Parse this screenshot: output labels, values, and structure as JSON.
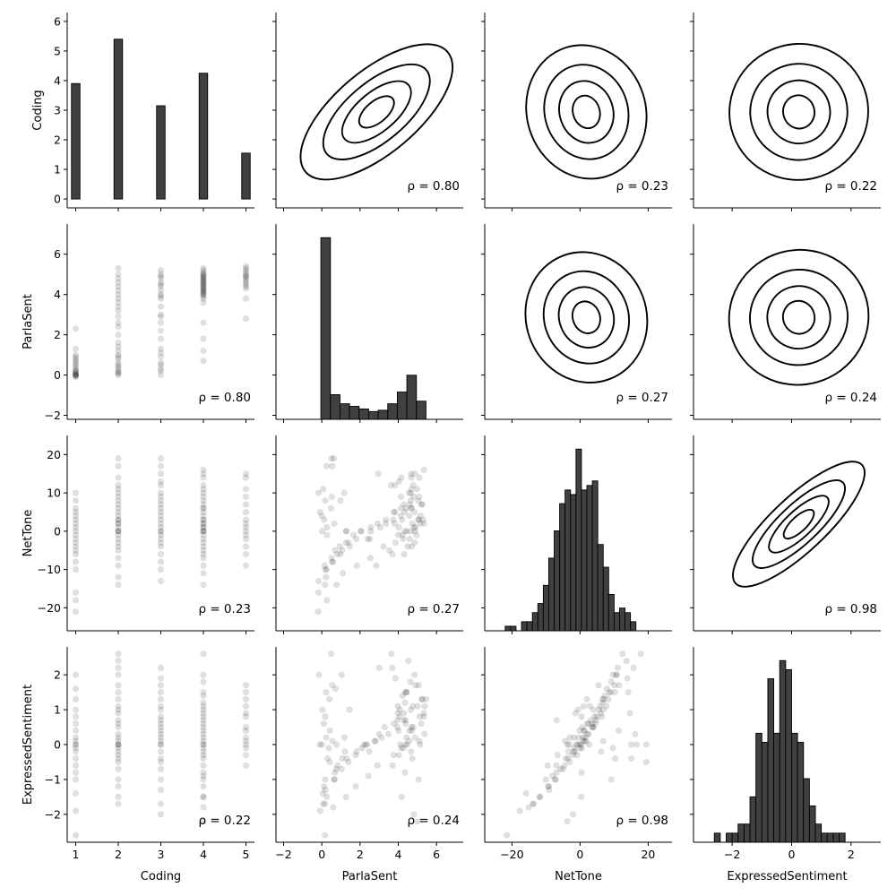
{
  "chart_data": {
    "type": "pairplot",
    "variables": [
      "Coding",
      "ParlaSent",
      "NetTone",
      "ExpressedSentiment"
    ],
    "x_ranges": [
      [
        0.8,
        5.2
      ],
      [
        -2.4,
        7.4
      ],
      [
        -28,
        27
      ],
      [
        -3.3,
        3.0
      ]
    ],
    "y_ranges": [
      [
        -0.3,
        6.3
      ],
      [
        -2.2,
        7.5
      ],
      [
        -26,
        25
      ],
      [
        -2.8,
        2.8
      ]
    ],
    "x_ticks": [
      [
        1,
        2,
        3,
        4,
        5
      ],
      [
        -2,
        0,
        2,
        4,
        6
      ],
      [
        -20,
        0,
        20
      ],
      [
        -2,
        0,
        2
      ]
    ],
    "y_ticks": [
      [
        0,
        1,
        2,
        3,
        4,
        5,
        6
      ],
      [
        -2,
        0,
        2,
        4,
        6
      ],
      [
        -20,
        -10,
        0,
        10,
        20
      ],
      [
        -2,
        -1,
        0,
        1,
        2
      ]
    ],
    "diagonal": [
      {
        "variable": "Coding",
        "type": "bar",
        "bins": [
          [
            0.9,
            1.1,
            3.9
          ],
          [
            1.9,
            2.1,
            5.4
          ],
          [
            2.9,
            3.1,
            3.15
          ],
          [
            3.9,
            4.1,
            4.25
          ],
          [
            4.9,
            5.1,
            1.55
          ]
        ]
      },
      {
        "variable": "ParlaSent",
        "type": "histogram",
        "bin_start": -0.05,
        "bin_width": 0.5,
        "values": [
          7.0,
          0.95,
          0.6,
          0.5,
          0.4,
          0.3,
          0.35,
          0.6,
          1.05,
          1.7,
          0.7
        ]
      },
      {
        "variable": "NetTone",
        "type": "histogram",
        "bin_start": -22,
        "bin_width": 1.6,
        "values": [
          1,
          1,
          0,
          2,
          2,
          4,
          6,
          10,
          16,
          22,
          28,
          31,
          30,
          40,
          31,
          32,
          33,
          19,
          14,
          8,
          4,
          5,
          4,
          2
        ]
      },
      {
        "variable": "ExpressedSentiment",
        "type": "histogram",
        "bin_start": -2.6,
        "bin_width": 0.2,
        "values": [
          1,
          0,
          1,
          1,
          2,
          2,
          5,
          12,
          11,
          18,
          12,
          20,
          19,
          12,
          11,
          7,
          4,
          2,
          1,
          1,
          1,
          1
        ]
      }
    ],
    "correlations": [
      [
        null,
        0.8,
        0.23,
        0.22
      ],
      [
        0.8,
        null,
        0.27,
        0.24
      ],
      [
        0.23,
        0.27,
        null,
        0.98
      ],
      [
        0.22,
        0.24,
        0.98,
        null
      ]
    ],
    "rho_labels": [
      [
        null,
        "ρ = 0.80",
        "ρ = 0.23",
        "ρ = 0.22"
      ],
      [
        "ρ = 0.80",
        null,
        "ρ = 0.27",
        "ρ = 0.24"
      ],
      [
        "ρ = 0.23",
        "ρ = 0.27",
        null,
        "ρ = 0.98"
      ],
      [
        "ρ = 0.22",
        "ρ = 0.24",
        "ρ = 0.98",
        null
      ]
    ],
    "lower_triangle": "scatter",
    "upper_triangle": "kde",
    "scatter_estimated_points": {
      "Coding": [
        1,
        1,
        1,
        1,
        1,
        1,
        1,
        1,
        1,
        1,
        1,
        1,
        1,
        1,
        1,
        1,
        1,
        1,
        1,
        1,
        2,
        2,
        2,
        2,
        2,
        2,
        2,
        2,
        2,
        2,
        2,
        2,
        2,
        2,
        2,
        2,
        2,
        2,
        2,
        2,
        2,
        2,
        2,
        2,
        2,
        2,
        2,
        2,
        2,
        3,
        3,
        3,
        3,
        3,
        3,
        3,
        3,
        3,
        3,
        3,
        3,
        3,
        3,
        3,
        3,
        3,
        3,
        3,
        3,
        3,
        3,
        3,
        3,
        3,
        4,
        4,
        4,
        4,
        4,
        4,
        4,
        4,
        4,
        4,
        4,
        4,
        4,
        4,
        4,
        4,
        4,
        4,
        4,
        4,
        4,
        4,
        4,
        4,
        4,
        4,
        4,
        4,
        4,
        4,
        4,
        4,
        5,
        5,
        5,
        5,
        5,
        5,
        5,
        5,
        5,
        5,
        5,
        5,
        5,
        5,
        5
      ],
      "ParlaSent": [
        0,
        0.1,
        -0.1,
        0.3,
        0.5,
        0.8,
        1.0,
        1.3,
        2.3,
        0,
        0.2,
        0.6,
        0,
        0.1,
        -0.05,
        0.4,
        0.9,
        0,
        0.2,
        0.7,
        0,
        0.1,
        0.3,
        0.5,
        0.9,
        1.2,
        1.6,
        2.0,
        2.4,
        2.9,
        3.4,
        3.8,
        4.0,
        4.4,
        4.8,
        5.3,
        0.2,
        0.6,
        1.0,
        3.6,
        4.6,
        0.4,
        0.8,
        2.6,
        3.2,
        4.2,
        0.1,
        1.4,
        5.0,
        0,
        0.3,
        0.6,
        0.9,
        1.3,
        1.8,
        2.2,
        2.6,
        3.0,
        3.4,
        3.8,
        4.2,
        4.6,
        5.0,
        5.2,
        4.4,
        4.8,
        3.9,
        2.9,
        0.2,
        0.5,
        4.0,
        4.5,
        1.1,
        4.9,
        0.7,
        1.2,
        1.8,
        2.6,
        3.6,
        3.9,
        4.1,
        4.3,
        4.5,
        4.7,
        4.9,
        5.1,
        5.3,
        4.0,
        4.2,
        4.4,
        4.6,
        4.8,
        5.0,
        3.8,
        4.3,
        4.7,
        5.2,
        4.1,
        4.5,
        4.9,
        4.6,
        4.4,
        4.0,
        4.8,
        4.2,
        5.0,
        2.8,
        3.8,
        4.4,
        4.6,
        4.8,
        5.0,
        5.2,
        5.4,
        4.9,
        5.1,
        4.3,
        4.7,
        5.3,
        4.5,
        4.9
      ],
      "NetTone": [
        -21,
        -18,
        -16,
        -10,
        -8,
        -6,
        -4,
        -3,
        -2,
        0,
        1,
        2,
        3,
        4,
        5,
        6,
        8,
        10,
        -1,
        -5,
        -14,
        -12,
        -9,
        -7,
        -5,
        -3,
        -1,
        0,
        0,
        1,
        2,
        3,
        4,
        5,
        6,
        7,
        8,
        9,
        10,
        12,
        14,
        17,
        19,
        -2,
        -4,
        3,
        11,
        0,
        2,
        -13,
        -10,
        -8,
        -6,
        -4,
        -2,
        0,
        1,
        2,
        3,
        5,
        6,
        7,
        8,
        9,
        10,
        12,
        13,
        15,
        17,
        19,
        -1,
        4,
        0,
        -3,
        -14,
        -11,
        -9,
        -7,
        -5,
        -3,
        -1,
        0,
        0,
        1,
        2,
        3,
        4,
        5,
        6,
        7,
        8,
        10,
        11,
        12,
        14,
        15,
        16,
        -2,
        0,
        3,
        6,
        -6,
        2,
        -4,
        1,
        9,
        -9,
        -6,
        -4,
        -2,
        0,
        1,
        2,
        3,
        5,
        7,
        9,
        11,
        14,
        15,
        -1
      ],
      "ExpressedSentiment": [
        -2.6,
        -1.9,
        -1.4,
        -1.0,
        -0.8,
        -0.6,
        -0.4,
        -0.2,
        0,
        0,
        0.2,
        0.4,
        0.6,
        0.8,
        1.0,
        1.3,
        1.6,
        2.0,
        -0.1,
        0.1,
        -1.7,
        -1.5,
        -1.2,
        -1.0,
        -0.7,
        -0.5,
        -0.3,
        -0.1,
        0,
        0.1,
        0.3,
        0.5,
        0.7,
        0.9,
        1.1,
        1.3,
        1.5,
        1.7,
        2.0,
        2.2,
        2.4,
        2.6,
        0,
        -0.2,
        0.2,
        0.6,
        -0.4,
        1.0,
        0,
        -1.7,
        -1.3,
        -1.0,
        -0.7,
        -0.4,
        -0.2,
        0,
        0.1,
        0.3,
        0.5,
        0.6,
        0.8,
        1.0,
        1.1,
        1.3,
        1.5,
        1.7,
        1.9,
        2.2,
        0,
        -0.5,
        0.4,
        0.7,
        0.2,
        -2.0,
        -1.8,
        -1.5,
        -1.2,
        -0.9,
        -0.6,
        -0.3,
        -0.1,
        0,
        0.1,
        0.2,
        0.4,
        0.6,
        0.8,
        1.0,
        1.2,
        1.4,
        1.5,
        1.8,
        2.0,
        2.6,
        0,
        -0.4,
        0.3,
        0.9,
        -0.8,
        0.5,
        -0.2,
        0.7,
        1.1,
        -2.2,
        -1.5,
        -1.0,
        -0.6,
        -0.3,
        0,
        0.2,
        0.5,
        0.8,
        1.1,
        1.3,
        1.7,
        0.1,
        -0.1,
        0.4,
        0.9,
        1.5
      ]
    }
  }
}
